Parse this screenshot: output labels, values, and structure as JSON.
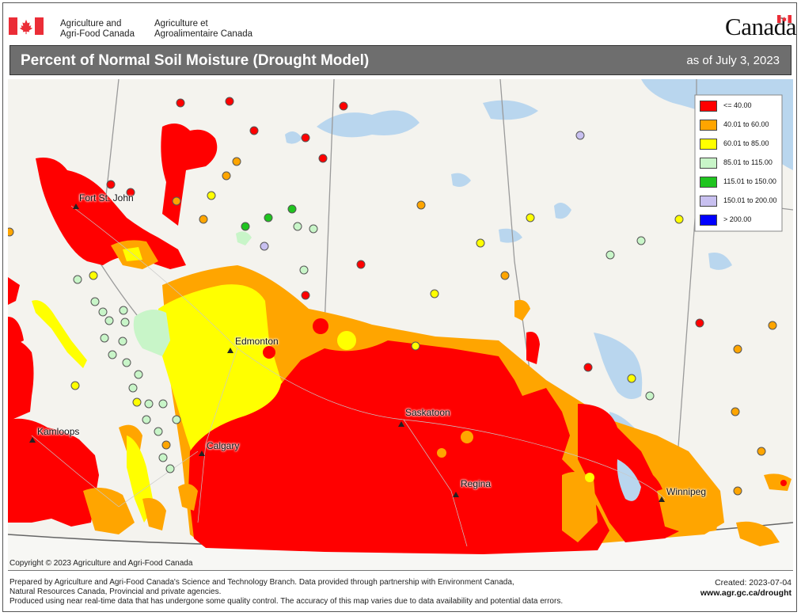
{
  "header": {
    "dept_en_line1": "Agriculture and",
    "dept_en_line2": "Agri-Food Canada",
    "dept_fr_line1": "Agriculture et",
    "dept_fr_line2": "Agroalimentaire Canada",
    "wordmark": "Canada",
    "flag_colors": {
      "red": "#eb2d37",
      "white": "#ffffff"
    }
  },
  "title": {
    "main": "Percent of Normal Soil Moisture (Drought Model)",
    "date": "as of July 3, 2023"
  },
  "legend": [
    {
      "label": "<= 40.00",
      "color": "#ff0000"
    },
    {
      "label": "40.01  to  60.00",
      "color": "#ffa500"
    },
    {
      "label": "60.01  to  85.00",
      "color": "#ffff00"
    },
    {
      "label": "85.01  to  115.00",
      "color": "#c8f5c8"
    },
    {
      "label": "115.01  to  150.00",
      "color": "#1fc41f"
    },
    {
      "label": "150.01  to  200.00",
      "color": "#c8c0f0"
    },
    {
      "label": "> 200.00",
      "color": "#0000ff"
    }
  ],
  "cities": [
    "Fort St. John",
    "Edmonton",
    "Kamloops",
    "Calgary",
    "Saskatoon",
    "Regina",
    "Winnipeg"
  ],
  "footer": {
    "copyright": "Copyright © 2023 Agriculture and Agri-Food Canada",
    "line1": "Prepared by Agriculture and Agri-Food Canada's Science and Technology Branch. Data provided through partnership with Environment Canada,",
    "line2": "Natural Resources Canada, Provincial and private agencies.",
    "line3": "Produced using near real-time data that has undergone some quality control. The accuracy of this map varies due to data availability and potential data errors.",
    "created": "Created: 2023-07-04",
    "url": "www.agr.gc.ca/drought"
  }
}
